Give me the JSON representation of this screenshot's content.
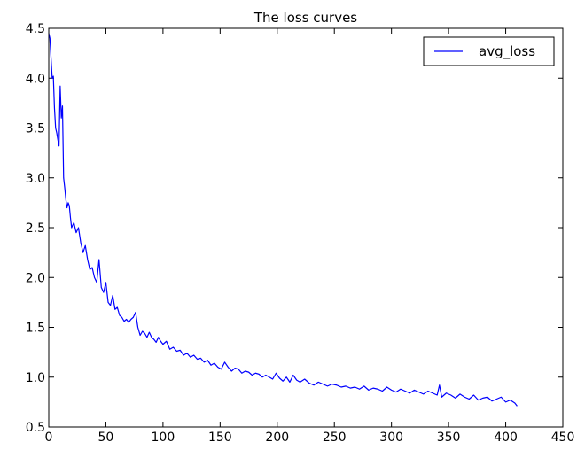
{
  "chart_data": {
    "type": "line",
    "title": "The loss curves",
    "xlabel": "",
    "ylabel": "",
    "xlim": [
      0,
      450
    ],
    "ylim": [
      0.5,
      4.5
    ],
    "xticks": [
      0,
      50,
      100,
      150,
      200,
      250,
      300,
      350,
      400,
      450
    ],
    "xtick_labels": [
      "0",
      "50",
      "100",
      "150",
      "200",
      "250",
      "300",
      "350",
      "400",
      "450"
    ],
    "yticks": [
      0.5,
      1.0,
      1.5,
      2.0,
      2.5,
      3.0,
      3.5,
      4.0,
      4.5
    ],
    "ytick_labels": [
      "0.5",
      "1.0",
      "1.5",
      "2.0",
      "2.5",
      "3.0",
      "3.5",
      "4.0",
      "4.5"
    ],
    "grid": false,
    "legend": {
      "position": "top-right",
      "entries": [
        "avg_loss"
      ]
    },
    "series": [
      {
        "name": "avg_loss",
        "color": "#0000ff",
        "x": [
          0,
          1,
          2,
          3,
          4,
          5,
          6,
          7,
          8,
          9,
          10,
          11,
          12,
          13,
          14,
          15,
          16,
          17,
          18,
          19,
          20,
          22,
          24,
          26,
          28,
          30,
          32,
          34,
          36,
          38,
          40,
          42,
          44,
          46,
          48,
          50,
          52,
          54,
          56,
          58,
          60,
          62,
          64,
          66,
          68,
          70,
          72,
          74,
          76,
          78,
          80,
          82,
          84,
          86,
          88,
          90,
          92,
          94,
          96,
          98,
          100,
          103,
          106,
          109,
          112,
          115,
          118,
          121,
          124,
          127,
          130,
          133,
          136,
          139,
          142,
          145,
          148,
          151,
          154,
          157,
          160,
          163,
          166,
          169,
          172,
          175,
          178,
          181,
          184,
          187,
          190,
          193,
          196,
          199,
          202,
          205,
          208,
          211,
          214,
          217,
          220,
          224,
          228,
          232,
          236,
          240,
          244,
          248,
          252,
          256,
          260,
          264,
          268,
          272,
          276,
          280,
          284,
          288,
          292,
          296,
          300,
          304,
          308,
          312,
          316,
          320,
          324,
          328,
          332,
          336,
          340,
          342,
          344,
          348,
          352,
          356,
          360,
          364,
          368,
          372,
          376,
          380,
          384,
          388,
          392,
          396,
          400,
          404,
          408,
          410
        ],
        "y": [
          4.45,
          4.4,
          4.2,
          4.0,
          4.02,
          3.7,
          3.5,
          3.45,
          3.38,
          3.32,
          3.92,
          3.6,
          3.72,
          3.0,
          2.9,
          2.78,
          2.7,
          2.75,
          2.72,
          2.6,
          2.5,
          2.55,
          2.45,
          2.5,
          2.35,
          2.25,
          2.32,
          2.18,
          2.08,
          2.1,
          2.0,
          1.95,
          2.18,
          1.9,
          1.85,
          1.95,
          1.75,
          1.72,
          1.82,
          1.68,
          1.7,
          1.62,
          1.6,
          1.56,
          1.58,
          1.55,
          1.58,
          1.6,
          1.65,
          1.5,
          1.42,
          1.46,
          1.44,
          1.4,
          1.45,
          1.4,
          1.38,
          1.35,
          1.4,
          1.36,
          1.33,
          1.36,
          1.28,
          1.3,
          1.26,
          1.27,
          1.22,
          1.24,
          1.2,
          1.22,
          1.18,
          1.19,
          1.15,
          1.17,
          1.12,
          1.14,
          1.1,
          1.08,
          1.15,
          1.1,
          1.06,
          1.09,
          1.08,
          1.04,
          1.06,
          1.05,
          1.02,
          1.04,
          1.03,
          1.0,
          1.02,
          1.0,
          0.98,
          1.04,
          0.99,
          0.96,
          1.0,
          0.95,
          1.02,
          0.97,
          0.95,
          0.98,
          0.94,
          0.92,
          0.95,
          0.93,
          0.91,
          0.93,
          0.92,
          0.9,
          0.91,
          0.89,
          0.9,
          0.88,
          0.91,
          0.87,
          0.89,
          0.88,
          0.86,
          0.9,
          0.87,
          0.85,
          0.88,
          0.86,
          0.84,
          0.87,
          0.85,
          0.83,
          0.86,
          0.84,
          0.82,
          0.92,
          0.8,
          0.84,
          0.82,
          0.79,
          0.83,
          0.8,
          0.78,
          0.82,
          0.77,
          0.79,
          0.8,
          0.76,
          0.78,
          0.8,
          0.75,
          0.77,
          0.74,
          0.71
        ]
      }
    ]
  }
}
